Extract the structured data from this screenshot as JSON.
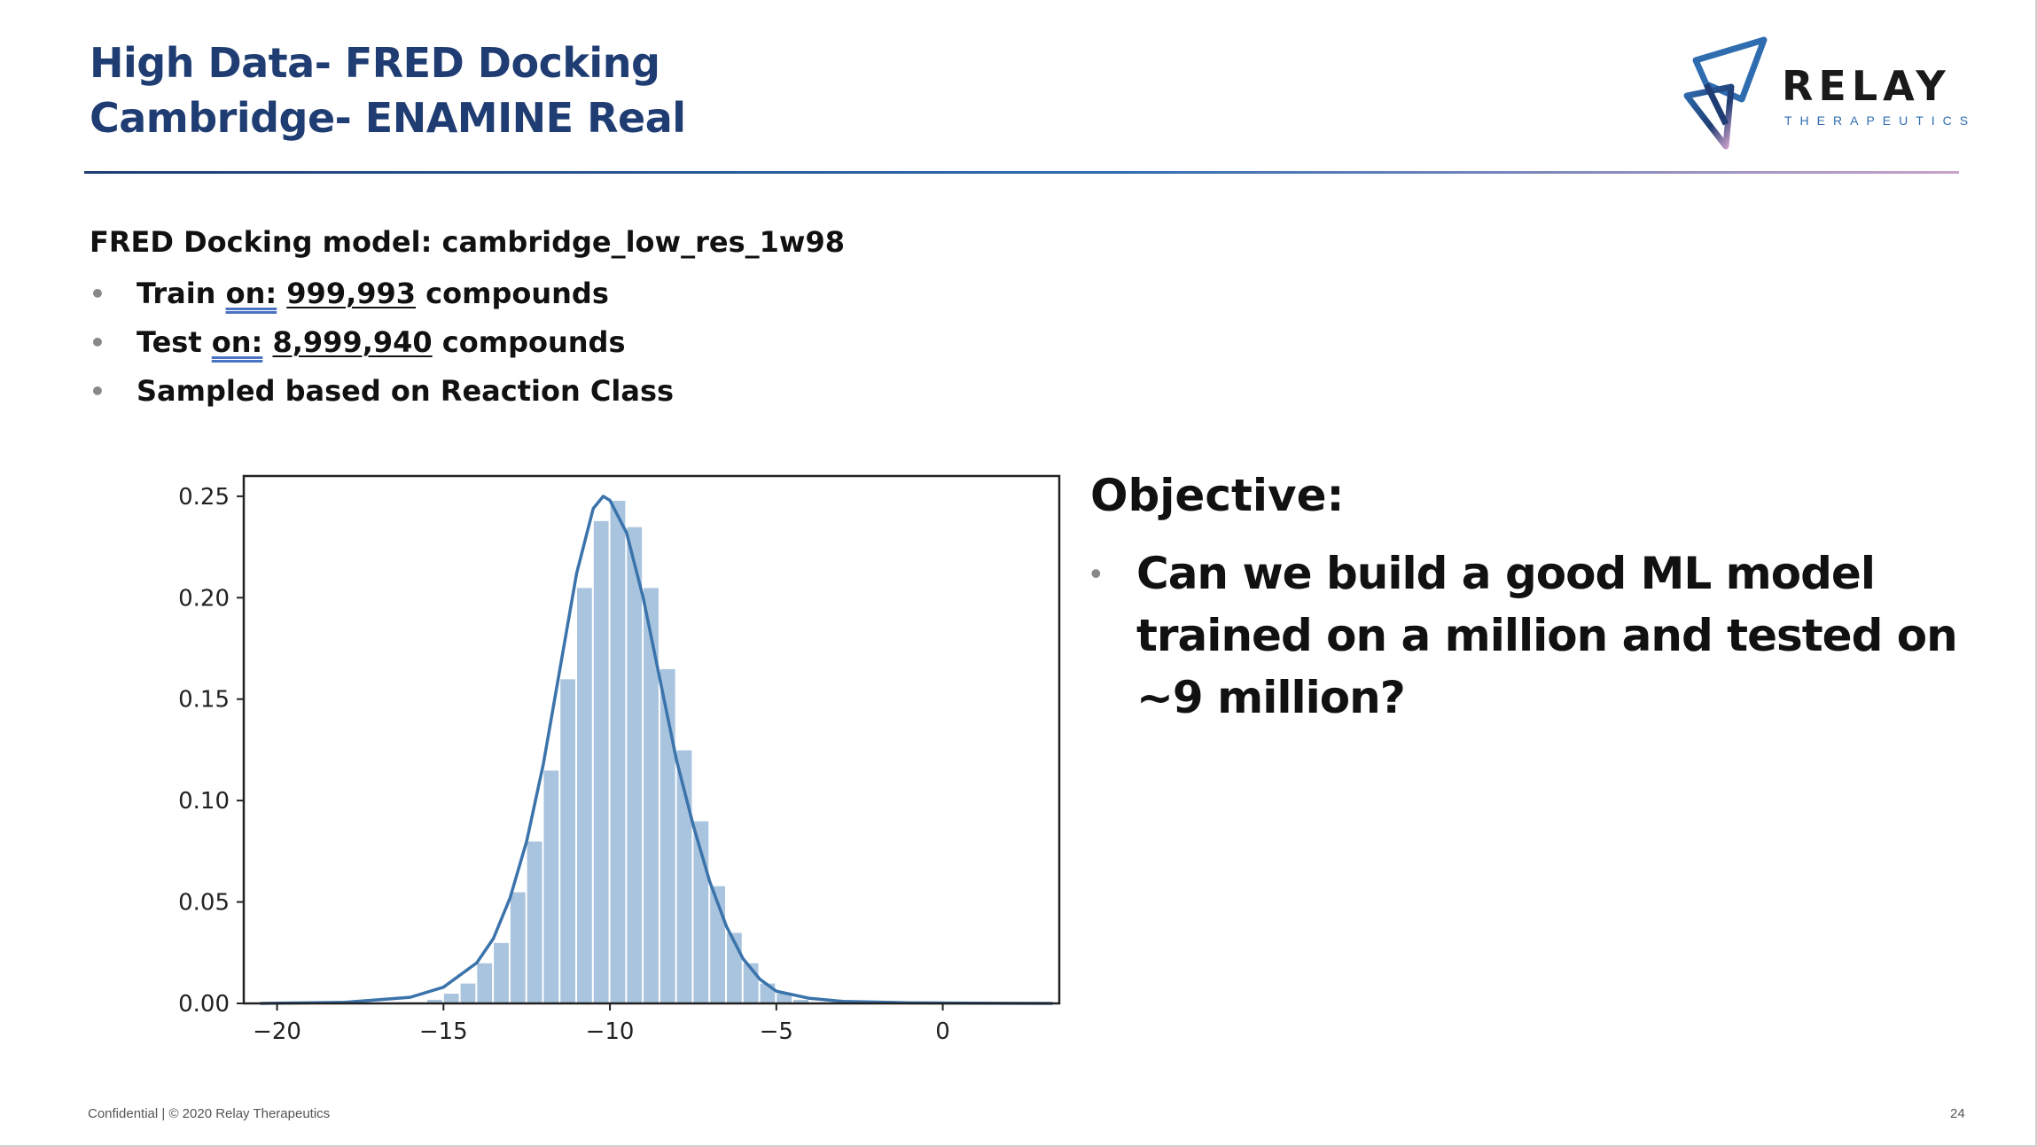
{
  "slide": {
    "title_lines": [
      "High Data- FRED Docking",
      "Cambridge- ENAMINE Real"
    ],
    "logo": {
      "word": "RELAY",
      "sub": "THERAPEUTICS"
    },
    "model_line": "FRED Docking model: cambridge_low_res_1w98",
    "bullets": [
      {
        "prefix": "Train ",
        "on": "on:",
        "number": "999,993",
        "suffix": " compounds"
      },
      {
        "prefix": "Test ",
        "on": "on:",
        "number": "8,999,940",
        "suffix": " compounds"
      },
      {
        "text": "Sampled based on Reaction Class"
      }
    ],
    "objective": {
      "heading": "Objective:",
      "bullet": "Can we build a good ML model trained on a million and tested on ~9 million?"
    },
    "footer": {
      "left": "Confidential | © 2020 Relay Therapeutics",
      "page": "24"
    },
    "colors": {
      "title": "#1f3d73",
      "accent": "#2f6db0",
      "hist_fill": "#a9c4de",
      "kde_line": "#3b73ab"
    }
  },
  "chart_data": {
    "type": "area",
    "title": "",
    "xlabel": "",
    "ylabel": "",
    "xlim": [
      -21,
      3.5
    ],
    "ylim": [
      0,
      0.26
    ],
    "xticks": [
      -20,
      -15,
      -10,
      -5,
      0
    ],
    "yticks": [
      0.0,
      0.05,
      0.1,
      0.15,
      0.2,
      0.25
    ],
    "xtick_labels": [
      "−20",
      "−15",
      "−10",
      "−5",
      "0"
    ],
    "ytick_labels": [
      "0.00",
      "0.05",
      "0.10",
      "0.15",
      "0.20",
      "0.25"
    ],
    "grid": false,
    "histogram": {
      "bin_starts": [
        -15.5,
        -15.0,
        -14.5,
        -14.0,
        -13.5,
        -13.0,
        -12.5,
        -12.0,
        -11.5,
        -11.0,
        -10.5,
        -10.0,
        -9.5,
        -9.0,
        -8.5,
        -8.0,
        -7.5,
        -7.0,
        -6.5,
        -6.0,
        -5.5,
        -5.0,
        -4.5
      ],
      "bin_width": 0.5,
      "values": [
        0.002,
        0.005,
        0.01,
        0.02,
        0.03,
        0.055,
        0.08,
        0.115,
        0.16,
        0.205,
        0.238,
        0.248,
        0.235,
        0.205,
        0.165,
        0.125,
        0.09,
        0.058,
        0.035,
        0.02,
        0.01,
        0.005,
        0.002
      ]
    },
    "kde": {
      "x": [
        -20.5,
        -18,
        -16,
        -15,
        -14,
        -13.5,
        -13,
        -12.5,
        -12,
        -11.5,
        -11,
        -10.5,
        -10.2,
        -10,
        -9.5,
        -9,
        -8.5,
        -8,
        -7.5,
        -7,
        -6.5,
        -6,
        -5.5,
        -5,
        -4,
        -3,
        -1,
        1,
        3.3
      ],
      "y": [
        0.0,
        0.0005,
        0.003,
        0.008,
        0.02,
        0.032,
        0.052,
        0.08,
        0.118,
        0.165,
        0.212,
        0.244,
        0.25,
        0.248,
        0.232,
        0.2,
        0.16,
        0.12,
        0.088,
        0.06,
        0.038,
        0.022,
        0.012,
        0.006,
        0.0025,
        0.001,
        0.0003,
        0.0001,
        0.0
      ]
    }
  }
}
